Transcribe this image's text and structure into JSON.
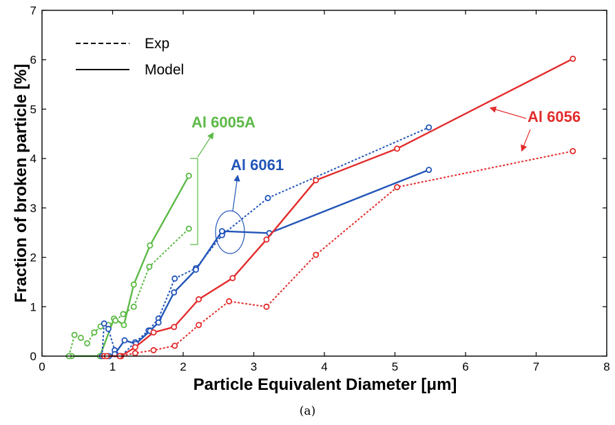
{
  "chart_data": {
    "type": "line",
    "xlabel": "Particle Equivalent Diameter [μm]",
    "ylabel": "Fraction of broken particle [%]",
    "xlim": [
      0,
      8
    ],
    "ylim": [
      0,
      7
    ],
    "xticks": [
      0,
      1,
      2,
      3,
      4,
      5,
      6,
      7,
      8
    ],
    "yticks": [
      0,
      1,
      2,
      3,
      4,
      5,
      6,
      7
    ],
    "grid": false,
    "legend": {
      "position": "top-left",
      "entries": [
        {
          "label": "Exp",
          "style": "dashed"
        },
        {
          "label": "Model",
          "style": "solid"
        }
      ]
    },
    "series": [
      {
        "id": "al6005a-model",
        "alloy": "Al 6005A",
        "kind": "Model",
        "style": "solid",
        "color": "#5cb946",
        "points": [
          [
            0.42,
            0
          ],
          [
            0.82,
            0
          ],
          [
            1.02,
            0.76
          ],
          [
            1.16,
            0.63
          ],
          [
            1.3,
            1.45
          ],
          [
            1.53,
            2.24
          ],
          [
            2.08,
            3.65
          ]
        ]
      },
      {
        "id": "al6005a-exp",
        "alloy": "Al 6005A",
        "kind": "Exp",
        "style": "dashed",
        "color": "#5cb946",
        "points": [
          [
            0.38,
            0
          ],
          [
            0.46,
            0.43
          ],
          [
            0.55,
            0.37
          ],
          [
            0.64,
            0.26
          ],
          [
            0.74,
            0.48
          ],
          [
            0.83,
            0.6
          ],
          [
            0.94,
            0.63
          ],
          [
            1.04,
            0.72
          ],
          [
            1.15,
            0.85
          ],
          [
            1.3,
            1.0
          ],
          [
            1.52,
            1.81
          ],
          [
            2.08,
            2.58
          ]
        ]
      },
      {
        "id": "al6061-exp",
        "alloy": "Al 6061",
        "kind": "Exp",
        "style": "dashed",
        "color": "#2255b8",
        "points": [
          [
            0.85,
            0
          ],
          [
            0.88,
            0.66
          ],
          [
            0.94,
            0.55
          ],
          [
            1.03,
            0.12
          ],
          [
            1.12,
            0
          ],
          [
            1.32,
            0.28
          ],
          [
            1.51,
            0.52
          ],
          [
            1.65,
            0.76
          ],
          [
            1.88,
            1.57
          ],
          [
            2.18,
            1.78
          ],
          [
            2.55,
            2.45
          ],
          [
            3.2,
            3.2
          ],
          [
            5.48,
            4.63
          ]
        ]
      },
      {
        "id": "al6061-model",
        "alloy": "Al 6061",
        "kind": "Model",
        "style": "solid",
        "color": "#2255b8",
        "points": [
          [
            0.95,
            0
          ],
          [
            1.03,
            0.04
          ],
          [
            1.17,
            0.32
          ],
          [
            1.33,
            0.25
          ],
          [
            1.53,
            0.51
          ],
          [
            1.65,
            0.68
          ],
          [
            1.87,
            1.29
          ],
          [
            2.18,
            1.75
          ],
          [
            2.55,
            2.53
          ],
          [
            3.22,
            2.49
          ],
          [
            5.48,
            3.77
          ]
        ]
      },
      {
        "id": "al6056-model",
        "alloy": "Al 6056",
        "kind": "Model",
        "style": "solid",
        "color": "#e32b2b",
        "points": [
          [
            0.88,
            0
          ],
          [
            1.12,
            0
          ],
          [
            1.32,
            0.18
          ],
          [
            1.58,
            0.48
          ],
          [
            1.87,
            0.59
          ],
          [
            2.22,
            1.15
          ],
          [
            2.7,
            1.58
          ],
          [
            3.18,
            2.36
          ],
          [
            3.88,
            3.56
          ],
          [
            5.03,
            4.2
          ],
          [
            7.52,
            6.02
          ]
        ]
      },
      {
        "id": "al6056-exp",
        "alloy": "Al 6056",
        "kind": "Exp",
        "style": "dashed",
        "color": "#e32b2b",
        "points": [
          [
            0.92,
            0
          ],
          [
            1.1,
            0
          ],
          [
            1.32,
            0.06
          ],
          [
            1.58,
            0.12
          ],
          [
            1.88,
            0.21
          ],
          [
            2.22,
            0.63
          ],
          [
            2.65,
            1.11
          ],
          [
            3.18,
            1.0
          ],
          [
            3.88,
            2.05
          ],
          [
            5.03,
            3.42
          ],
          [
            7.52,
            4.15
          ]
        ]
      }
    ],
    "annotations": [
      {
        "text": "Al 6005A",
        "color": "#5cb946"
      },
      {
        "text": "Al 6061",
        "color": "#2255b8"
      },
      {
        "text": "Al 6056",
        "color": "#e32b2b"
      }
    ]
  },
  "caption": "(a)"
}
